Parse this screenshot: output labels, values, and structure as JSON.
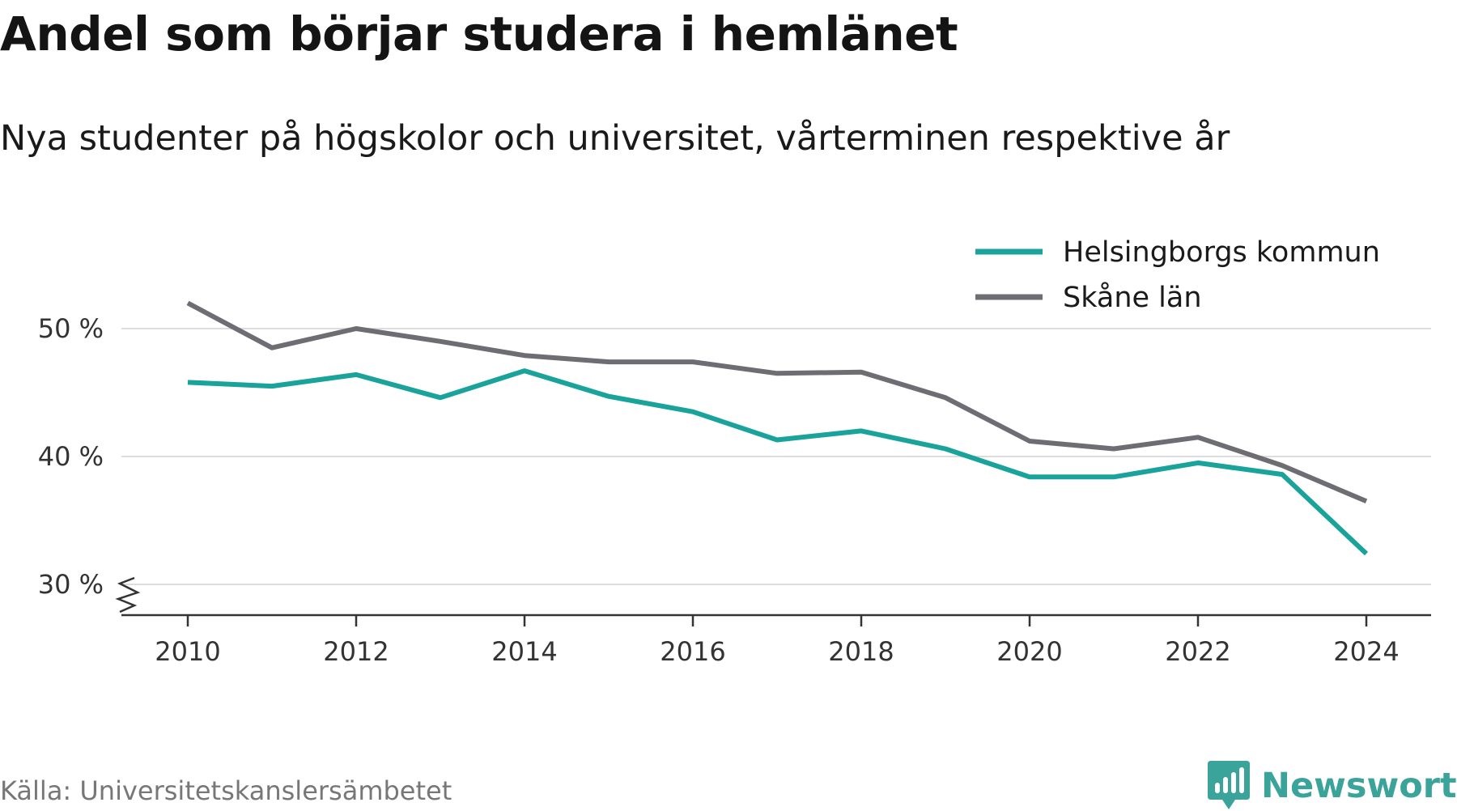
{
  "title": "Andel som börjar studera i hemlänet",
  "subtitle": "Nya studenter på högskolor och universitet, vårterminen respektive år",
  "source": "Källa: Universitetskanslersämbetet",
  "brand": {
    "name": "Newsworthy",
    "color": "#3aa39a",
    "icon": "newsworthy-logo-icon"
  },
  "colors": {
    "grid": "#dddddd",
    "axis": "#333333"
  },
  "chart_data": {
    "type": "line",
    "x": [
      2010,
      2011,
      2012,
      2013,
      2014,
      2015,
      2016,
      2017,
      2018,
      2019,
      2020,
      2021,
      2022,
      2023,
      2024
    ],
    "xticks": [
      2010,
      2012,
      2014,
      2016,
      2018,
      2020,
      2022,
      2024
    ],
    "xtick_labels": [
      "2010",
      "2012",
      "2014",
      "2016",
      "2018",
      "2020",
      "2022",
      "2024"
    ],
    "yticks": [
      30,
      40,
      50
    ],
    "ytick_labels": [
      "30 %",
      "40 %",
      "50 %"
    ],
    "ylim": [
      28,
      53
    ],
    "xlim": [
      2009.2,
      2024.7
    ],
    "axis_break": true,
    "grid": "horizontal",
    "legend_position": "top-right",
    "series": [
      {
        "name": "Helsingborgs kommun",
        "color": "#1aa39a",
        "values": [
          45.8,
          45.5,
          46.4,
          44.6,
          46.7,
          44.7,
          43.5,
          41.3,
          42.0,
          40.6,
          38.4,
          38.4,
          39.5,
          38.6,
          32.4
        ]
      },
      {
        "name": "Skåne län",
        "color": "#6e6d73",
        "values": [
          52.0,
          48.5,
          50.0,
          49.0,
          47.9,
          47.4,
          47.4,
          46.5,
          46.6,
          44.6,
          41.2,
          40.6,
          41.5,
          39.3,
          36.5
        ]
      }
    ]
  }
}
